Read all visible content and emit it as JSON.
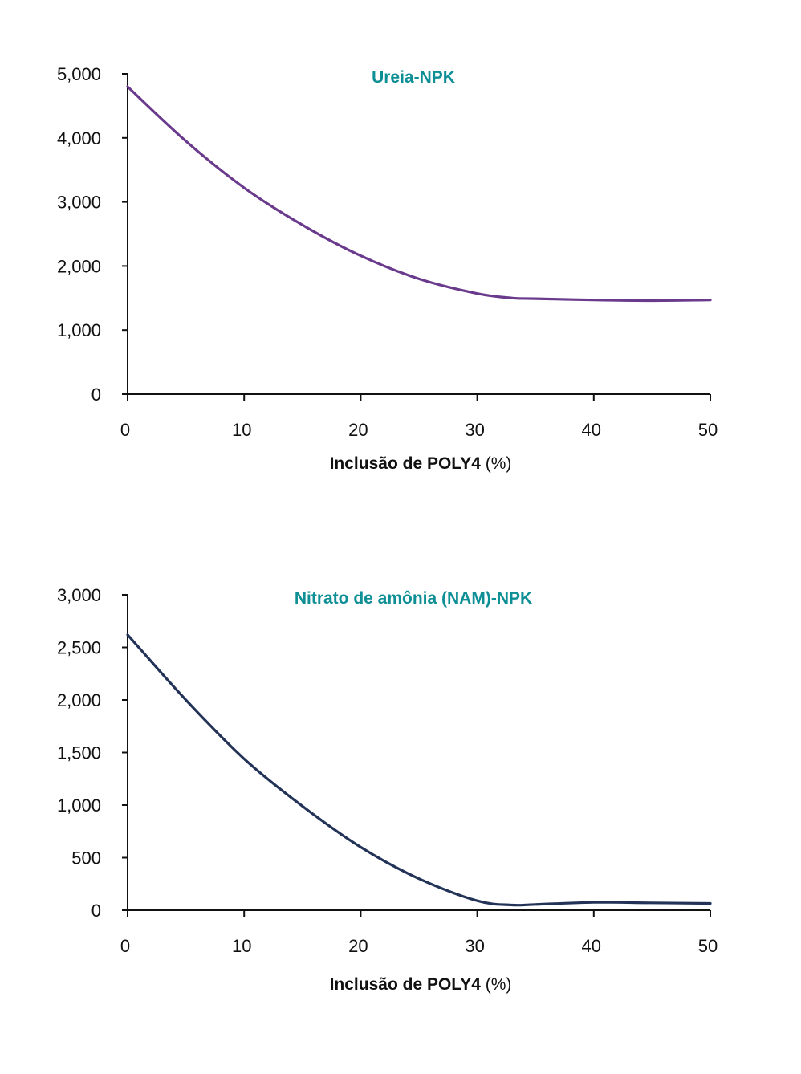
{
  "colors": {
    "title": "#0e8f96",
    "axis": "#111111",
    "series_top": "#6a3a8c",
    "series_bottom": "#233358"
  },
  "chart_data": [
    {
      "type": "line",
      "title": "Ureia-NPK",
      "xlabel": "Inclusão de POLY4",
      "xlabel_unit": "(%)",
      "ylabel": "",
      "xlim": [
        0,
        50
      ],
      "ylim": [
        0,
        5000
      ],
      "x_ticks": [
        0,
        10,
        20,
        30,
        40,
        50
      ],
      "y_ticks": [
        0,
        1000,
        2000,
        3000,
        4000,
        5000
      ],
      "x_tick_labels": [
        "0",
        "10",
        "20",
        "30",
        "40",
        "50"
      ],
      "y_tick_labels": [
        "0",
        "1,000",
        "2,000",
        "3,000",
        "4,000",
        "5,000"
      ],
      "grid": false,
      "series": [
        {
          "color": "#6a3a8c",
          "x": [
            0,
            5,
            10,
            15,
            20,
            25,
            30,
            33,
            35,
            40,
            45,
            50
          ],
          "y": [
            4800,
            3950,
            3220,
            2640,
            2160,
            1800,
            1570,
            1500,
            1490,
            1470,
            1460,
            1470
          ]
        }
      ]
    },
    {
      "type": "line",
      "title": "Nitrato de amônia (NAM)-NPK",
      "xlabel": "Inclusão de POLY4",
      "xlabel_unit": "(%)",
      "ylabel": "",
      "xlim": [
        0,
        50
      ],
      "ylim": [
        0,
        3000
      ],
      "x_ticks": [
        0,
        10,
        20,
        30,
        40,
        50
      ],
      "y_ticks": [
        0,
        500,
        1000,
        1500,
        2000,
        2500,
        3000
      ],
      "x_tick_labels": [
        "0",
        "10",
        "20",
        "30",
        "40",
        "50"
      ],
      "y_tick_labels": [
        "0",
        "500",
        "1,000",
        "1,500",
        "2,000",
        "2,500",
        "3,000"
      ],
      "grid": false,
      "series": [
        {
          "color": "#233358",
          "x": [
            0,
            5,
            10,
            15,
            20,
            25,
            30,
            33,
            35,
            40,
            45,
            50
          ],
          "y": [
            2620,
            2000,
            1440,
            990,
            600,
            300,
            90,
            50,
            55,
            75,
            70,
            65
          ]
        }
      ]
    }
  ]
}
